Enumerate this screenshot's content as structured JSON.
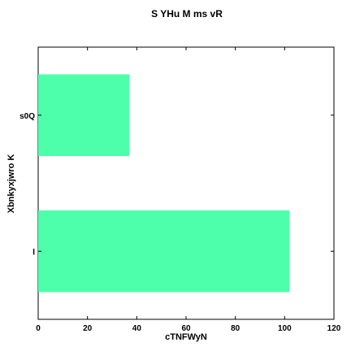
{
  "chart_data": {
    "type": "bar",
    "orientation": "horizontal",
    "title": "S YHu M ms vR",
    "xlabel": "cTNFWyN",
    "ylabel": "Xbnkyxjwro K",
    "categories": [
      "l",
      "s0Q"
    ],
    "values": [
      102,
      37
    ],
    "xlim": [
      0,
      120
    ],
    "xticks": [
      0,
      20,
      40,
      60,
      80,
      100,
      120
    ],
    "grid": false,
    "bar_color": "#4dffaa"
  }
}
